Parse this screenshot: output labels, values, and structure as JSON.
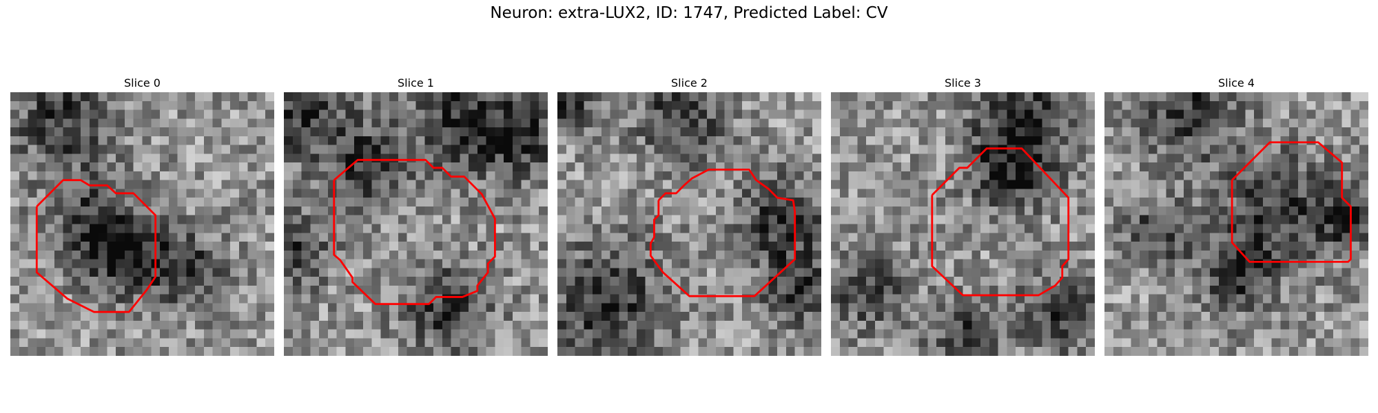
{
  "figure": {
    "suptitle": "Neuron: extra-LUX2, ID: 1747, Predicted Label: CV",
    "grid_cells": 30,
    "colors": {
      "background": "#ffffff",
      "contour": "#ff0000",
      "colormap": "grayscale"
    },
    "slices": [
      {
        "title": "Slice 0",
        "texture": {
          "seed": 11,
          "blobs": [
            [
              9.5,
              15.5,
              4.0,
              -45
            ],
            [
              13.5,
              19.0,
              3.0,
              -60
            ],
            [
              20.0,
              20.0,
              3.0,
              -45
            ],
            [
              6.0,
              3.0,
              4.0,
              15
            ]
          ]
        },
        "contour": [
          [
            3,
            13
          ],
          [
            6,
            10
          ],
          [
            8,
            10
          ],
          [
            9,
            10.6
          ],
          [
            11,
            10.6
          ],
          [
            12,
            11.5
          ],
          [
            14,
            11.5
          ],
          [
            16.5,
            14
          ],
          [
            16.5,
            21
          ],
          [
            15.5,
            22.5
          ],
          [
            13.5,
            25
          ],
          [
            9.5,
            25
          ],
          [
            8.5,
            24.5
          ],
          [
            7.5,
            24
          ],
          [
            6.5,
            23.5
          ],
          [
            3,
            20.5
          ],
          [
            3,
            13
          ]
        ]
      },
      {
        "title": "Slice 1",
        "texture": {
          "seed": 23,
          "blobs": [
            [
              19.5,
              3.0,
              4.0,
              -20
            ],
            [
              26.5,
              5.0,
              3.5,
              -30
            ],
            [
              2.5,
              2.5,
              4.0,
              0
            ],
            [
              9.5,
              8.5,
              3.0,
              10
            ],
            [
              18.5,
              24.5,
              3.5,
              -20
            ],
            [
              1.0,
              18.0,
              3.0,
              0
            ]
          ]
        },
        "contour": [
          [
            5.7,
            10
          ],
          [
            8.4,
            7.7
          ],
          [
            16.1,
            7.7
          ],
          [
            17,
            8.6
          ],
          [
            18,
            8.6
          ],
          [
            19,
            9.6
          ],
          [
            20.5,
            9.6
          ],
          [
            22.5,
            11.6
          ],
          [
            24,
            14.4
          ],
          [
            24,
            18.7
          ],
          [
            23.2,
            19.5
          ],
          [
            23.2,
            20.5
          ],
          [
            22,
            22
          ],
          [
            22,
            22.6
          ],
          [
            20.3,
            23.3
          ],
          [
            17.3,
            23.3
          ],
          [
            16.5,
            24.1
          ],
          [
            10.4,
            24.1
          ],
          [
            7.8,
            21.6
          ],
          [
            7.8,
            21.1
          ],
          [
            7.1,
            20.1
          ],
          [
            6.4,
            19.1
          ],
          [
            5.7,
            18.5
          ],
          [
            5.7,
            10
          ]
        ]
      },
      {
        "title": "Slice 2",
        "texture": {
          "seed": 37,
          "blobs": [
            [
              5.5,
              24.0,
              5.0,
              0
            ],
            [
              25.5,
              14.5,
              3.5,
              0
            ],
            [
              1.0,
              1.5,
              2.0,
              0
            ],
            [
              14.0,
              3.0,
              3.5,
              0
            ],
            [
              27.5,
              22.5,
              3.0,
              0
            ]
          ]
        },
        "contour": [
          [
            11.5,
            12.3
          ],
          [
            12.3,
            11.5
          ],
          [
            13.5,
            11.5
          ],
          [
            14.5,
            10.5
          ],
          [
            15.3,
            9.8
          ],
          [
            17.2,
            8.8
          ],
          [
            21.8,
            8.8
          ],
          [
            22.6,
            10
          ],
          [
            24,
            11
          ],
          [
            25,
            12
          ],
          [
            26.8,
            12.3
          ],
          [
            27,
            13.6
          ],
          [
            27,
            19
          ],
          [
            22.4,
            23.2
          ],
          [
            15,
            23.2
          ],
          [
            12,
            20.5
          ],
          [
            10.6,
            18.6
          ],
          [
            10.6,
            17.2
          ],
          [
            11,
            16.5
          ],
          [
            11,
            14.5
          ],
          [
            11.5,
            14
          ],
          [
            11.5,
            12.3
          ]
        ]
      },
      {
        "title": "Slice 3",
        "texture": {
          "seed": 53,
          "blobs": [
            [
              20.5,
              9.0,
              3.5,
              45
            ],
            [
              22.0,
              3.0,
              4.0,
              20
            ],
            [
              4.5,
              22.5,
              3.0,
              0
            ],
            [
              26.0,
              25.0,
              3.0,
              0
            ],
            [
              15.5,
              28.0,
              3.0,
              0
            ]
          ]
        },
        "contour": [
          [
            11.5,
            11.7
          ],
          [
            14.6,
            8.6
          ],
          [
            15.5,
            8.6
          ],
          [
            17.7,
            6.4
          ],
          [
            21.7,
            6.4
          ],
          [
            27,
            12
          ],
          [
            27,
            19
          ],
          [
            26.3,
            19.8
          ],
          [
            26.3,
            21.1
          ],
          [
            25.5,
            22
          ],
          [
            23.6,
            23.1
          ],
          [
            15,
            23.1
          ],
          [
            11.5,
            19.8
          ],
          [
            11.5,
            11.7
          ]
        ]
      },
      {
        "title": "Slice 4",
        "texture": {
          "seed": 71,
          "blobs": [
            [
              19.5,
              13.5,
              4.5,
              0
            ],
            [
              10.0,
              2.0,
              4.0,
              0
            ],
            [
              6.0,
              16.0,
              2.5,
              0
            ],
            [
              27.5,
              14.0,
              2.5,
              0
            ],
            [
              15.0,
              21.0,
              3.0,
              0
            ]
          ]
        },
        "contour": [
          [
            14.5,
            10
          ],
          [
            18.8,
            5.7
          ],
          [
            24.3,
            5.7
          ],
          [
            27,
            8
          ],
          [
            27,
            12
          ],
          [
            28,
            13
          ],
          [
            28,
            19
          ],
          [
            27.7,
            19.3
          ],
          [
            16.5,
            19.3
          ],
          [
            14.5,
            17.1
          ],
          [
            14.5,
            10
          ]
        ]
      }
    ]
  }
}
